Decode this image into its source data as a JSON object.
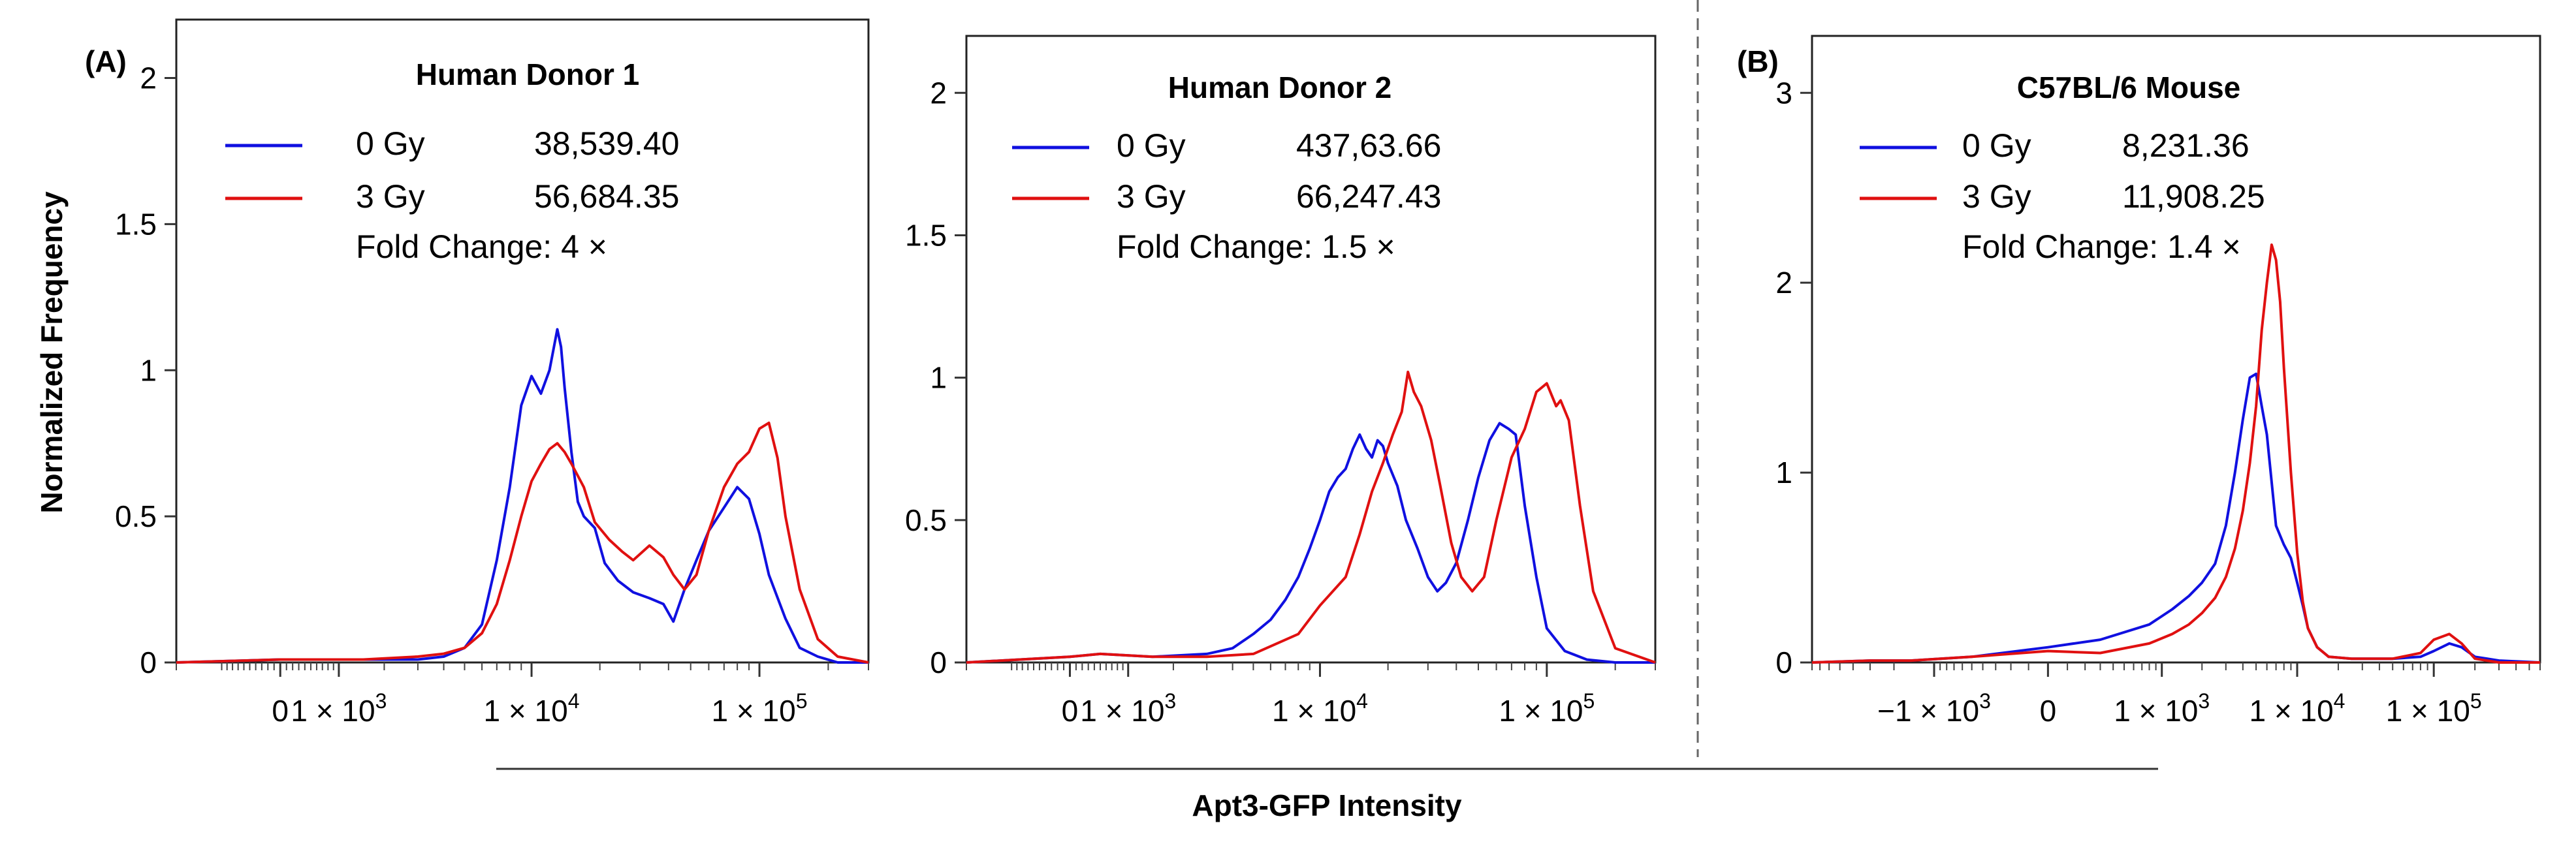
{
  "figure": {
    "ylabel": "Normalized Frequency",
    "xlabel": "Apt3-GFP Intensity"
  },
  "chart_data": [
    {
      "type": "line",
      "panel_label": "(A)",
      "title": "Human Donor  1",
      "ylabel": "Normalized Frequency",
      "xlabel": "Apt3-GFP Intensity",
      "ylim": [
        0,
        2.2
      ],
      "y_ticks": [
        "0",
        "0.5",
        "1",
        "1.5",
        "2"
      ],
      "y_tick_values": [
        0,
        0.5,
        1,
        1.5,
        2
      ],
      "x_ticks": [
        {
          "label": "0",
          "value": 0
        },
        {
          "label": "1 × 10",
          "sup": "3",
          "value": 1000
        },
        {
          "label": "1 × 10",
          "sup": "4",
          "value": 10000
        },
        {
          "label": "1 × 10",
          "sup": "5",
          "value": 100000
        }
      ],
      "xlim": [
        -2000,
        300000
      ],
      "legend": {
        "position": "top-left"
      },
      "series": [
        {
          "name": "0 Gy",
          "stat": "38,539.40",
          "color": "#1010e0",
          "x": [
            -2000,
            0,
            500,
            1500,
            3000,
            4000,
            5000,
            6000,
            7000,
            8000,
            9000,
            10000,
            11000,
            12000,
            13000,
            13500,
            14000,
            15000,
            16000,
            17000,
            19000,
            21000,
            24000,
            28000,
            33000,
            38000,
            42000,
            47000,
            53000,
            60000,
            70000,
            80000,
            90000,
            100000,
            110000,
            130000,
            150000,
            180000,
            220000,
            300000
          ],
          "y": [
            0,
            0.01,
            0.01,
            0.01,
            0.01,
            0.02,
            0.05,
            0.13,
            0.35,
            0.6,
            0.88,
            0.98,
            0.92,
            1.0,
            1.14,
            1.08,
            0.94,
            0.72,
            0.55,
            0.5,
            0.46,
            0.34,
            0.28,
            0.24,
            0.22,
            0.2,
            0.14,
            0.25,
            0.35,
            0.45,
            0.53,
            0.6,
            0.56,
            0.44,
            0.3,
            0.15,
            0.05,
            0.02,
            0.0,
            0.0
          ]
        },
        {
          "name": "3 Gy",
          "stat": "56,684.35",
          "color": "#e01010",
          "x": [
            -2000,
            0,
            500,
            1500,
            3000,
            4000,
            5000,
            6000,
            7000,
            8000,
            9000,
            10000,
            11000,
            12000,
            13000,
            14000,
            15000,
            17000,
            19000,
            22000,
            25000,
            28000,
            33000,
            38000,
            42000,
            47000,
            53000,
            60000,
            70000,
            80000,
            90000,
            100000,
            110000,
            120000,
            130000,
            150000,
            180000,
            220000,
            300000
          ],
          "y": [
            0,
            0.01,
            0.01,
            0.01,
            0.02,
            0.03,
            0.05,
            0.1,
            0.2,
            0.35,
            0.5,
            0.62,
            0.68,
            0.73,
            0.75,
            0.72,
            0.68,
            0.6,
            0.48,
            0.42,
            0.38,
            0.35,
            0.4,
            0.36,
            0.3,
            0.25,
            0.3,
            0.45,
            0.6,
            0.68,
            0.72,
            0.8,
            0.82,
            0.7,
            0.5,
            0.25,
            0.08,
            0.02,
            0.0
          ]
        }
      ],
      "fold_change": "Fold Change: 4 ×"
    },
    {
      "type": "line",
      "title": "Human Donor  2",
      "ylim": [
        0,
        2.2
      ],
      "y_ticks": [
        "0",
        "0.5",
        "1",
        "1.5",
        "2"
      ],
      "y_tick_values": [
        0,
        0.5,
        1,
        1.5,
        2
      ],
      "x_ticks": [
        {
          "label": "0",
          "value": 0
        },
        {
          "label": "1 × 10",
          "sup": "3",
          "value": 1000
        },
        {
          "label": "1 × 10",
          "sup": "4",
          "value": 10000
        },
        {
          "label": "1 × 10",
          "sup": "5",
          "value": 100000
        }
      ],
      "xlim": [
        -2000,
        300000
      ],
      "legend": {
        "position": "top-left"
      },
      "series": [
        {
          "name": "0 Gy",
          "stat": "437,63.66",
          "color": "#1010e0",
          "x": [
            -2000,
            0,
            500,
            1500,
            3000,
            4000,
            5000,
            6000,
            7000,
            8000,
            9000,
            10000,
            11000,
            12000,
            13000,
            14000,
            15000,
            16000,
            17000,
            18000,
            19000,
            20000,
            22000,
            24000,
            27000,
            30000,
            33000,
            36000,
            40000,
            45000,
            50000,
            56000,
            62000,
            68000,
            73000,
            80000,
            90000,
            100000,
            120000,
            150000,
            200000,
            300000
          ],
          "y": [
            0,
            0.02,
            0.03,
            0.02,
            0.03,
            0.05,
            0.1,
            0.15,
            0.22,
            0.3,
            0.4,
            0.5,
            0.6,
            0.65,
            0.68,
            0.75,
            0.8,
            0.75,
            0.72,
            0.78,
            0.76,
            0.7,
            0.62,
            0.5,
            0.4,
            0.3,
            0.25,
            0.28,
            0.35,
            0.5,
            0.65,
            0.78,
            0.84,
            0.82,
            0.8,
            0.55,
            0.3,
            0.12,
            0.04,
            0.01,
            0.0,
            0.0
          ]
        },
        {
          "name": "3 Gy",
          "stat": "66,247.43",
          "color": "#e01010",
          "x": [
            -2000,
            0,
            500,
            1500,
            3000,
            5000,
            8000,
            10000,
            13000,
            15000,
            17000,
            19000,
            21000,
            23000,
            24500,
            26000,
            28000,
            31000,
            34000,
            38000,
            42000,
            47000,
            53000,
            60000,
            70000,
            80000,
            90000,
            100000,
            110000,
            115000,
            125000,
            140000,
            160000,
            200000,
            300000
          ],
          "y": [
            0,
            0.02,
            0.03,
            0.02,
            0.02,
            0.03,
            0.1,
            0.2,
            0.3,
            0.45,
            0.6,
            0.7,
            0.8,
            0.88,
            1.02,
            0.95,
            0.9,
            0.78,
            0.62,
            0.42,
            0.3,
            0.25,
            0.3,
            0.5,
            0.72,
            0.82,
            0.95,
            0.98,
            0.9,
            0.92,
            0.85,
            0.55,
            0.25,
            0.05,
            0.0
          ]
        }
      ],
      "fold_change": "Fold Change: 1.5 ×"
    },
    {
      "type": "line",
      "panel_label": "(B)",
      "title": "C57BL/6 Mouse",
      "ylim": [
        0,
        3.3
      ],
      "y_ticks": [
        "0",
        "1",
        "2",
        "3"
      ],
      "y_tick_values": [
        0,
        1,
        2,
        3
      ],
      "x_ticks": [
        {
          "label": "−1 × 10",
          "sup": "3",
          "value": -1000
        },
        {
          "label": "0",
          "value": 0
        },
        {
          "label": "1 × 10",
          "sup": "3",
          "value": 1000
        },
        {
          "label": "1 × 10",
          "sup": "4",
          "value": 10000
        },
        {
          "label": "1 × 10",
          "sup": "5",
          "value": 100000
        }
      ],
      "xlim": [
        -8000,
        600000
      ],
      "legend": {
        "position": "top-left"
      },
      "series": [
        {
          "name": "0 Gy",
          "stat": "8,231.36",
          "color": "#1010e0",
          "x": [
            -8000,
            -3000,
            -1500,
            -500,
            0,
            300,
            800,
            1200,
            1600,
            2000,
            2500,
            3000,
            3500,
            4000,
            4500,
            5000,
            5500,
            6000,
            6500,
            7000,
            8000,
            9000,
            10000,
            11000,
            12000,
            14000,
            17000,
            25000,
            50000,
            80000,
            100000,
            130000,
            160000,
            200000,
            300000,
            600000
          ],
          "y": [
            0,
            0.01,
            0.01,
            0.03,
            0.08,
            0.12,
            0.2,
            0.28,
            0.35,
            0.42,
            0.52,
            0.72,
            1.0,
            1.28,
            1.5,
            1.52,
            1.35,
            1.2,
            0.95,
            0.72,
            0.62,
            0.55,
            0.42,
            0.3,
            0.18,
            0.08,
            0.03,
            0.02,
            0.02,
            0.03,
            0.06,
            0.1,
            0.08,
            0.03,
            0.01,
            0.0
          ]
        },
        {
          "name": "3 Gy",
          "stat": "11,908.25",
          "color": "#e01010",
          "x": [
            -8000,
            -3000,
            -1500,
            -500,
            0,
            300,
            800,
            1200,
            1600,
            2000,
            2500,
            3000,
            3500,
            4000,
            4500,
            5000,
            5500,
            6000,
            6500,
            7000,
            7500,
            8000,
            9000,
            10000,
            11000,
            12000,
            14000,
            17000,
            25000,
            50000,
            80000,
            100000,
            130000,
            160000,
            200000,
            300000,
            600000
          ],
          "y": [
            0,
            0.01,
            0.01,
            0.03,
            0.06,
            0.05,
            0.1,
            0.15,
            0.2,
            0.26,
            0.34,
            0.45,
            0.6,
            0.8,
            1.05,
            1.35,
            1.75,
            2.0,
            2.2,
            2.12,
            1.9,
            1.55,
            1.0,
            0.58,
            0.32,
            0.18,
            0.08,
            0.03,
            0.02,
            0.02,
            0.05,
            0.12,
            0.15,
            0.1,
            0.02,
            0.0,
            0.0
          ]
        }
      ],
      "fold_change": "Fold Change: 1.4 ×"
    }
  ]
}
